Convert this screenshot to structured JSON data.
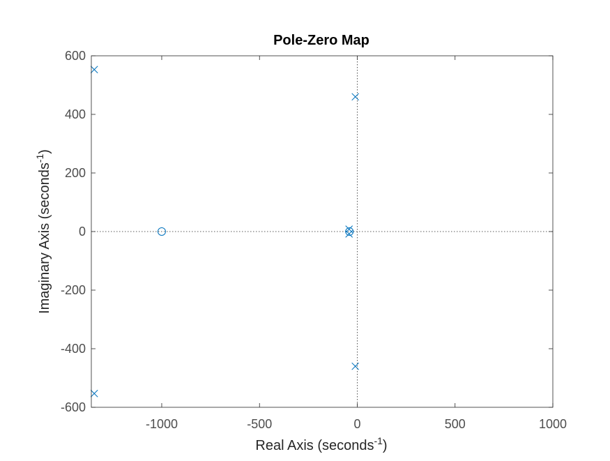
{
  "chart_data": {
    "type": "scatter",
    "title": "Pole-Zero Map",
    "xlabel": "Real Axis (seconds",
    "ylabel": "Imaginary Axis (seconds",
    "unit_exponent": "-1",
    "xlim": [
      -1360,
      1000
    ],
    "ylim": [
      -600,
      600
    ],
    "xticks": [
      -1000,
      -500,
      0,
      500,
      1000
    ],
    "yticks": [
      -600,
      -400,
      -200,
      0,
      200,
      400,
      600
    ],
    "grid": false,
    "reference_lines": "dotted lines at x = 0 and y = 0",
    "marker_color": "#0072BD",
    "poles": [
      {
        "x": -1345,
        "y": 553
      },
      {
        "x": -1345,
        "y": -553
      },
      {
        "x": -10,
        "y": 460
      },
      {
        "x": -10,
        "y": -460
      },
      {
        "x": -42,
        "y": 8
      },
      {
        "x": -42,
        "y": -8
      }
    ],
    "zeros": [
      {
        "x": -1000,
        "y": 0
      },
      {
        "x": -40,
        "y": 0
      }
    ]
  }
}
